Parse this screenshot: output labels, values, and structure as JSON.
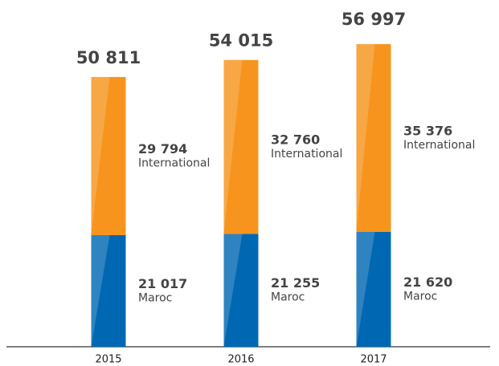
{
  "chart_data": {
    "type": "stacked_bar",
    "categories": [
      "2015",
      "2016",
      "2017"
    ],
    "series": [
      {
        "name": "Maroc",
        "color": "#0068b3",
        "values": [
          21017,
          21255,
          21620
        ],
        "value_labels": [
          "21 017",
          "21 255",
          "21 620"
        ]
      },
      {
        "name": "International",
        "color": "#f7941d",
        "values": [
          29794,
          32760,
          35376
        ],
        "value_labels": [
          "29 794",
          "32 760",
          "35 376"
        ]
      }
    ],
    "totals": [
      50811,
      54015,
      56997
    ],
    "total_labels": [
      "50 811",
      "54 015",
      "56 997"
    ]
  }
}
